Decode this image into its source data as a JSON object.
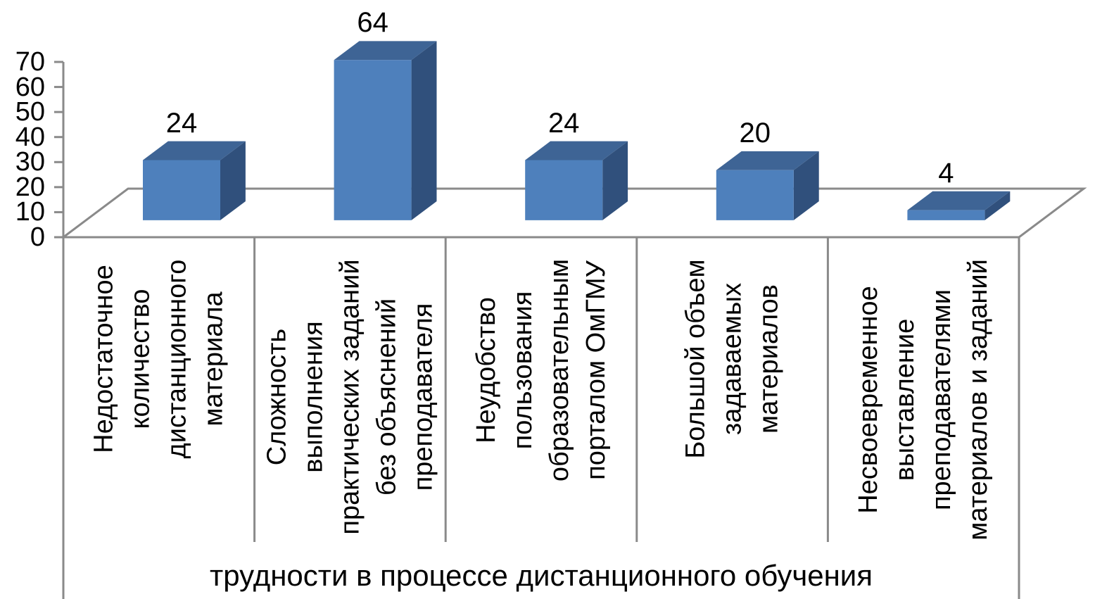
{
  "chart_data": {
    "type": "bar",
    "projection": "3d",
    "title": "",
    "xlabel": "трудности в процессе дистанционного обучения",
    "ylabel": "",
    "categories": [
      "Недостаточное количество дистанционного материала",
      "Сложность выполнения практических заданий без объяснений преподавателя",
      "Неудобство пользования образовательным порталом ОмГМУ",
      "Большой объем задаваемых материалов",
      "Несвоевременное выставление преподавателями материалов и заданий"
    ],
    "categories_display": [
      "Недостаточное\nколичество\nдистанционного\nматериала",
      "Сложность\nвыполнения\nпрактических заданий\nбез объяснений\nпреподавателя",
      "Неудобство\nпользования\nобразовательным\nпорталом ОмГМУ",
      "Большой объем\nзадаваемых\nматериалов",
      "Несвоевременное\nвыставление\nпреподавателями\nматериалов и заданий"
    ],
    "values": [
      24,
      64,
      24,
      20,
      4
    ],
    "value_labels": [
      "24",
      "64",
      "24",
      "20",
      "4"
    ],
    "ylim": [
      0,
      70
    ],
    "yticks": [
      0,
      10,
      20,
      30,
      40,
      50,
      60,
      70
    ],
    "grid": false,
    "legend": "none",
    "colors": {
      "bar_front": "#4E80BC",
      "bar_top": "#3E6495",
      "bar_side": "#30507C",
      "axis_line": "#8A8A8A",
      "text": "#000000",
      "background": "#FFFFFF"
    }
  }
}
